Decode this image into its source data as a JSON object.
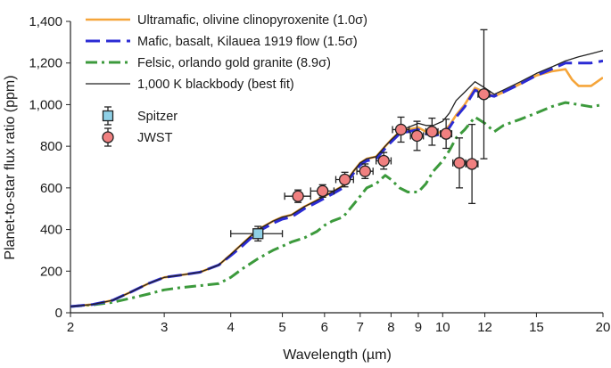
{
  "chart_data": {
    "type": "line",
    "xlabel": "Wavelength (µm)",
    "ylabel": "Planet-to-star flux ratio (ppm)",
    "x_scale": "log",
    "xlim": [
      2,
      20
    ],
    "ylim": [
      0,
      1400
    ],
    "x_ticks": [
      2,
      3,
      4,
      5,
      6,
      7,
      8,
      9,
      10,
      12,
      15,
      20
    ],
    "y_ticks": [
      0,
      200,
      400,
      600,
      800,
      1000,
      1200,
      1400
    ],
    "y_tick_labels": [
      "0",
      "200",
      "400",
      "600",
      "800",
      "1,000",
      "1,200",
      "1,400"
    ],
    "grid": false,
    "legend_position": "top-left",
    "series": [
      {
        "name": "Ultramafic, olivine clinopyroxenite (1.0σ)",
        "style": "solid",
        "color": "#f5a53a",
        "x": [
          2.0,
          2.2,
          2.4,
          2.6,
          2.8,
          3.0,
          3.2,
          3.5,
          3.8,
          4.0,
          4.2,
          4.5,
          4.8,
          5.0,
          5.2,
          5.5,
          5.8,
          6.0,
          6.2,
          6.5,
          6.8,
          7.0,
          7.2,
          7.5,
          7.8,
          8.0,
          8.3,
          8.6,
          9.0,
          9.3,
          9.6,
          10.0,
          10.3,
          10.6,
          11.0,
          11.5,
          12.0,
          12.5,
          13.0,
          14.0,
          15.0,
          16.0,
          17.0,
          17.5,
          18.0,
          19.0,
          20.0
        ],
        "y": [
          30,
          40,
          60,
          100,
          140,
          170,
          180,
          195,
          230,
          280,
          330,
          400,
          440,
          460,
          470,
          510,
          540,
          560,
          580,
          610,
          680,
          720,
          740,
          750,
          800,
          830,
          870,
          880,
          890,
          870,
          860,
          870,
          900,
          950,
          1000,
          1080,
          1060,
          1040,
          1060,
          1100,
          1140,
          1160,
          1170,
          1120,
          1090,
          1090,
          1130
        ]
      },
      {
        "name": "Mafic, basalt, Kilauea 1919 flow (1.5σ)",
        "style": "dashed",
        "color": "#2b2bd4",
        "x": [
          2.0,
          2.2,
          2.4,
          2.6,
          2.8,
          3.0,
          3.2,
          3.5,
          3.8,
          4.0,
          4.2,
          4.5,
          4.8,
          5.0,
          5.2,
          5.5,
          5.8,
          6.0,
          6.2,
          6.5,
          6.8,
          7.0,
          7.2,
          7.5,
          7.8,
          8.0,
          8.3,
          8.6,
          9.0,
          9.3,
          9.6,
          10.0,
          10.3,
          10.6,
          11.0,
          11.5,
          12.0,
          12.5,
          13.0,
          14.0,
          15.0,
          16.0,
          17.0,
          18.0,
          19.0,
          20.0
        ],
        "y": [
          30,
          40,
          60,
          100,
          140,
          170,
          180,
          195,
          230,
          275,
          320,
          390,
          430,
          450,
          460,
          500,
          530,
          550,
          570,
          600,
          670,
          710,
          730,
          740,
          790,
          820,
          860,
          870,
          880,
          860,
          850,
          860,
          890,
          940,
          990,
          1070,
          1050,
          1040,
          1060,
          1100,
          1140,
          1170,
          1200,
          1200,
          1200,
          1210
        ]
      },
      {
        "name": "Felsic, orlando gold granite (8.9σ)",
        "style": "dashdot",
        "color": "#3c9a3c",
        "x": [
          2.0,
          2.2,
          2.4,
          2.6,
          2.8,
          3.0,
          3.2,
          3.5,
          3.8,
          4.0,
          4.2,
          4.5,
          4.8,
          5.0,
          5.2,
          5.5,
          5.8,
          6.0,
          6.2,
          6.5,
          6.8,
          7.0,
          7.2,
          7.5,
          7.8,
          8.0,
          8.3,
          8.6,
          9.0,
          9.3,
          9.6,
          10.0,
          10.3,
          10.6,
          11.0,
          11.5,
          12.0,
          12.5,
          13.0,
          14.0,
          15.0,
          16.0,
          17.0,
          18.0,
          19.0,
          20.0
        ],
        "y": [
          30,
          38,
          50,
          70,
          90,
          110,
          120,
          130,
          140,
          170,
          210,
          260,
          300,
          320,
          340,
          360,
          390,
          420,
          440,
          460,
          520,
          560,
          600,
          620,
          660,
          640,
          600,
          580,
          580,
          620,
          680,
          730,
          780,
          840,
          880,
          940,
          910,
          870,
          900,
          930,
          960,
          990,
          1010,
          1000,
          990,
          1000
        ]
      },
      {
        "name": "1,000 K blackbody (best fit)",
        "style": "thin",
        "color": "#222222",
        "x": [
          2.0,
          2.2,
          2.4,
          2.6,
          2.8,
          3.0,
          3.2,
          3.5,
          3.8,
          4.0,
          4.2,
          4.5,
          4.8,
          5.0,
          5.2,
          5.5,
          5.8,
          6.0,
          6.2,
          6.5,
          6.8,
          7.0,
          7.2,
          7.5,
          7.8,
          8.0,
          8.3,
          8.6,
          9.0,
          9.3,
          9.6,
          10.0,
          10.3,
          10.6,
          11.0,
          11.5,
          12.0,
          12.5,
          13.0,
          14.0,
          15.0,
          16.0,
          17.0,
          18.0,
          19.0,
          20.0
        ],
        "y": [
          30,
          40,
          60,
          100,
          140,
          170,
          180,
          195,
          230,
          280,
          330,
          400,
          440,
          460,
          470,
          510,
          540,
          560,
          580,
          610,
          680,
          720,
          740,
          750,
          800,
          830,
          870,
          890,
          910,
          900,
          900,
          920,
          960,
          1020,
          1060,
          1110,
          1080,
          1050,
          1070,
          1110,
          1150,
          1180,
          1210,
          1230,
          1245,
          1260
        ]
      }
    ],
    "observations": [
      {
        "name": "Spitzer",
        "marker": "square",
        "color": "#8fd0e6",
        "points": [
          {
            "x": 4.5,
            "y": 380,
            "xerr": [
              4.0,
              5.0
            ],
            "yerr": 35
          }
        ]
      },
      {
        "name": "JWST",
        "marker": "circle",
        "color": "#f08080",
        "points": [
          {
            "x": 5.35,
            "y": 560,
            "xerr": [
              5.05,
              5.65
            ],
            "yerr": 30
          },
          {
            "x": 5.95,
            "y": 585,
            "xerr": [
              5.65,
              6.25
            ],
            "yerr": 30
          },
          {
            "x": 6.55,
            "y": 640,
            "xerr": [
              6.3,
              6.8
            ],
            "yerr": 35
          },
          {
            "x": 7.15,
            "y": 680,
            "xerr": [
              6.9,
              7.4
            ],
            "yerr": 35
          },
          {
            "x": 7.75,
            "y": 730,
            "xerr": [
              7.5,
              8.0
            ],
            "yerr": 40
          },
          {
            "x": 8.35,
            "y": 880,
            "xerr": [
              8.05,
              8.65
            ],
            "yerr": 60
          },
          {
            "x": 8.95,
            "y": 850,
            "xerr": [
              8.7,
              9.2
            ],
            "yerr": 70
          },
          {
            "x": 9.55,
            "y": 870,
            "xerr": [
              9.3,
              9.8
            ],
            "yerr": 65
          },
          {
            "x": 10.15,
            "y": 860,
            "xerr": [
              9.9,
              10.4
            ],
            "yerr": 70
          },
          {
            "x": 10.75,
            "y": 720,
            "xerr": [
              10.45,
              11.05
            ],
            "yerr": 120
          },
          {
            "x": 11.35,
            "y": 715,
            "xerr": [
              11.05,
              11.65
            ],
            "yerr": 190
          },
          {
            "x": 11.95,
            "y": 1050,
            "xerr": [
              11.65,
              12.25
            ],
            "yerr": 310
          }
        ]
      }
    ]
  }
}
